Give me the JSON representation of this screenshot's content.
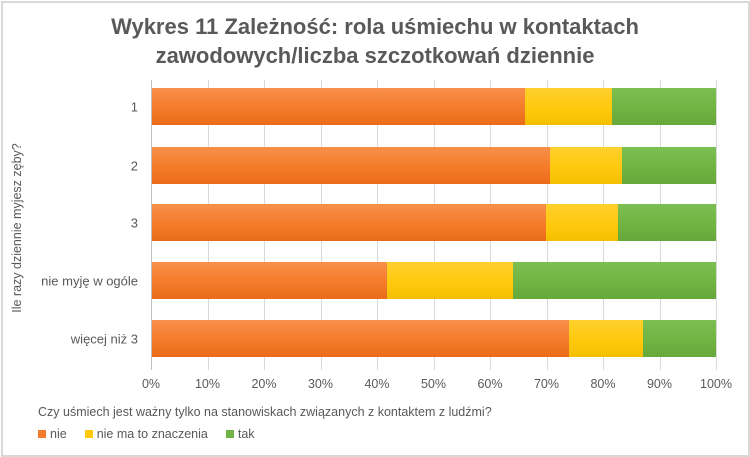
{
  "chart_data": {
    "type": "bar",
    "orientation": "horizontal",
    "stacked": "percent",
    "title": "Wykres 11 Zależność: rola uśmiechu w kontaktach zawodowych/liczba szczotkowań dziennie",
    "title_lines": [
      "Wykres 11 Zależność: rola uśmiechu w kontaktach",
      "zawodowych/liczba szczotkowań dziennie"
    ],
    "ylabel": "Ile razy dziennie myjesz zęby?",
    "xlabel": "Czy uśmiech jest ważny tylko na stanowiskach związanych z kontaktem z ludźmi?",
    "categories": [
      "1",
      "2",
      "3",
      "nie myję w ogóle",
      "więcej niż 3"
    ],
    "series": [
      {
        "name": "nie",
        "color": "#F47B2A",
        "values": [
          66.2,
          70.6,
          69.9,
          41.8,
          74.0
        ]
      },
      {
        "name": "nie ma to znaczenia",
        "color": "#FFC90E",
        "values": [
          15.4,
          12.8,
          12.8,
          22.3,
          13.1
        ]
      },
      {
        "name": "tak",
        "color": "#70B443",
        "values": [
          18.4,
          16.6,
          17.3,
          35.9,
          12.9
        ]
      }
    ],
    "xlim": [
      0,
      100
    ],
    "x_ticks": [
      "0%",
      "10%",
      "20%",
      "30%",
      "40%",
      "50%",
      "60%",
      "70%",
      "80%",
      "90%",
      "100%"
    ],
    "grid": true,
    "legend_position": "bottom-left"
  },
  "legend": [
    {
      "label": "nie",
      "color": "#F47B2A"
    },
    {
      "label": "nie ma to znaczenia",
      "color": "#FFC90E"
    },
    {
      "label": "tak",
      "color": "#70B443"
    }
  ]
}
